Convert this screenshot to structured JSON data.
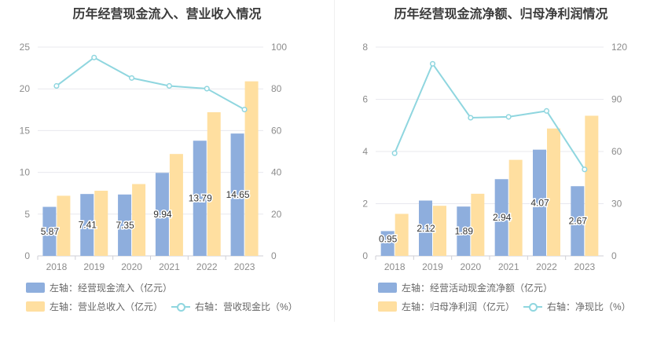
{
  "colors": {
    "bar_primary": "#8eaedd",
    "bar_secondary": "#ffdfa0",
    "line": "#8fd6df",
    "grid": "#e8e8ee",
    "tick": "#8c8c8c",
    "label": "#333333"
  },
  "chart_data": [
    {
      "type": "bar+line",
      "title": "历年经营现金流入、营业收入情况",
      "categories": [
        "2018",
        "2019",
        "2020",
        "2021",
        "2022",
        "2023"
      ],
      "left_ylim": [
        0,
        25
      ],
      "left_yticks": [
        0,
        5,
        10,
        15,
        20,
        25
      ],
      "right_ylim": [
        0,
        100
      ],
      "right_yticks": [
        0,
        20,
        40,
        60,
        80,
        100
      ],
      "grid": true,
      "legend_position": "bottom",
      "series": [
        {
          "name": "左轴：经营现金流入（亿元）",
          "kind": "bar",
          "axis": "left",
          "values": [
            5.87,
            7.41,
            7.35,
            9.94,
            13.79,
            14.65
          ],
          "labels": [
            "5.87",
            "7.41",
            "7.35",
            "9.94",
            "13.79",
            "14.65"
          ]
        },
        {
          "name": "左轴：营业总收入（亿元）",
          "kind": "bar",
          "axis": "left",
          "values": [
            7.2,
            7.8,
            8.6,
            12.2,
            17.2,
            20.9
          ]
        },
        {
          "name": "右轴：营收现金比（%）",
          "kind": "line",
          "axis": "right",
          "values": [
            81.4,
            95.0,
            85.2,
            81.4,
            80.1,
            70.1
          ]
        }
      ]
    },
    {
      "type": "bar+line",
      "title": "历年经营现金流净额、归母净利润情况",
      "categories": [
        "2018",
        "2019",
        "2020",
        "2021",
        "2022",
        "2023"
      ],
      "left_ylim": [
        0,
        8
      ],
      "left_yticks": [
        0,
        2,
        4,
        6,
        8
      ],
      "right_ylim": [
        0,
        120
      ],
      "right_yticks": [
        0,
        30,
        60,
        90,
        120
      ],
      "grid": true,
      "legend_position": "bottom",
      "series": [
        {
          "name": "左轴：经营活动现金流净额（亿元）",
          "kind": "bar",
          "axis": "left",
          "values": [
            0.95,
            2.12,
            1.89,
            2.94,
            4.07,
            2.67
          ],
          "labels": [
            "0.95",
            "2.12",
            "1.89",
            "2.94",
            "4.07",
            "2.67"
          ]
        },
        {
          "name": "左轴：归母净利润（亿元）",
          "kind": "bar",
          "axis": "left",
          "values": [
            1.61,
            1.92,
            2.38,
            3.68,
            4.88,
            5.37
          ]
        },
        {
          "name": "右轴：净现比（%）",
          "kind": "line",
          "axis": "right",
          "values": [
            59.0,
            110.4,
            79.4,
            79.9,
            83.3,
            49.7
          ]
        }
      ]
    }
  ]
}
